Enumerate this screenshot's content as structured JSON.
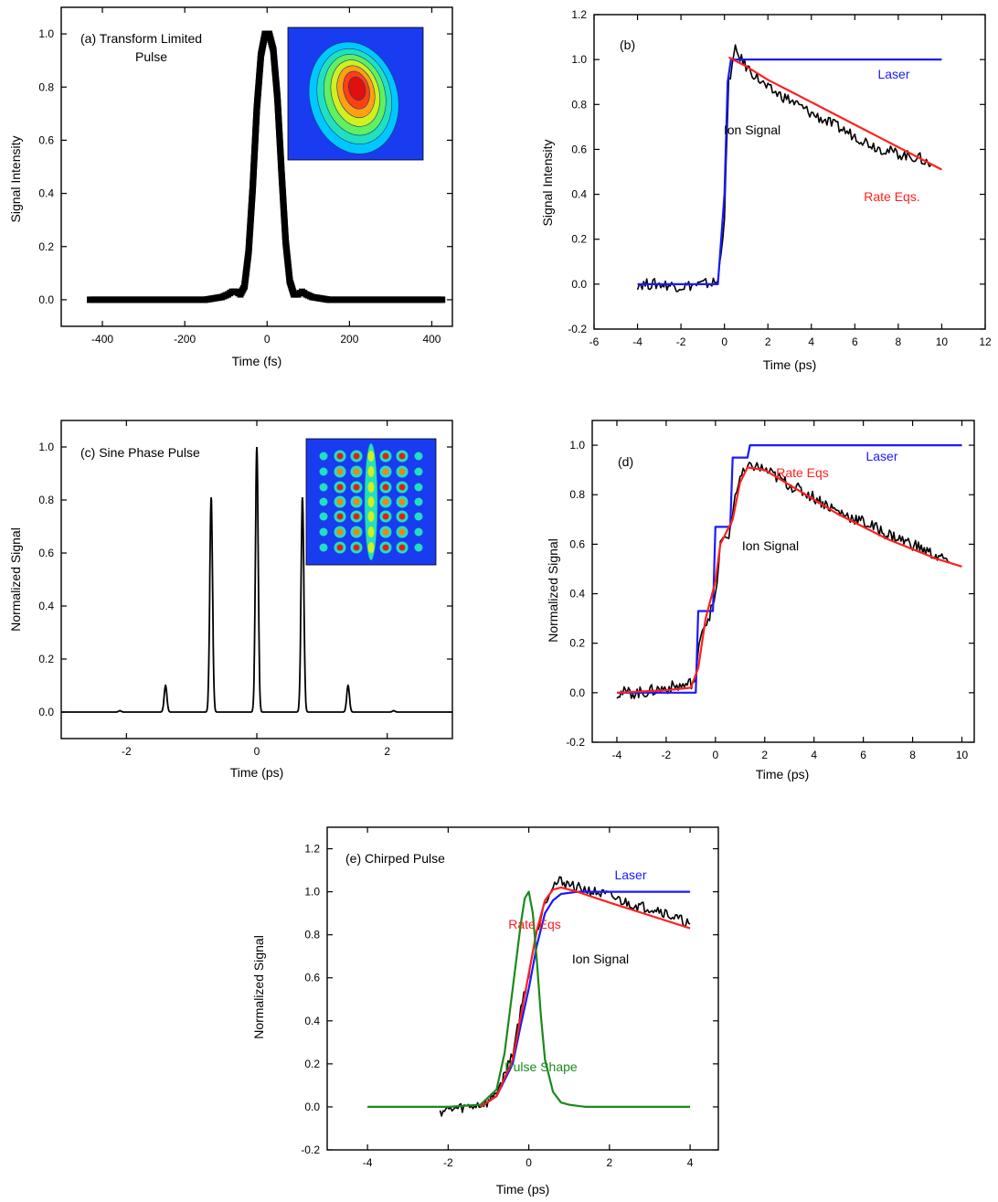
{
  "chart_data": [
    {
      "panel": "a",
      "type": "scatter",
      "title": "(a) Transform Limited Pulse",
      "title_lines": [
        "(a) Transform Limited",
        "Pulse"
      ],
      "xlabel": "Time (fs)",
      "ylabel": "Signal Intensity",
      "xlim": [
        -500,
        450
      ],
      "ylim": [
        -0.1,
        1.1
      ],
      "xticks": [
        -400,
        -200,
        0,
        200,
        400
      ],
      "xtick_labels": [
        "-400",
        "-200",
        "0",
        "200",
        "400"
      ],
      "yticks": [
        0.0,
        0.2,
        0.4,
        0.6,
        0.8,
        1.0
      ],
      "ytick_labels": [
        "0.0",
        "0.2",
        "0.4",
        "0.6",
        "0.8",
        "1.0"
      ],
      "grid": false,
      "series": [
        {
          "color": "#000000",
          "marker": "square",
          "x": [
            -430,
            -400,
            -350,
            -300,
            -250,
            -200,
            -150,
            -110,
            -95,
            -85,
            -75,
            -65,
            -55,
            -45,
            -35,
            -25,
            -15,
            -5,
            5,
            15,
            25,
            35,
            45,
            55,
            65,
            75,
            85,
            95,
            110,
            150,
            200,
            250,
            300,
            350,
            400,
            430
          ],
          "y": [
            0.0,
            0.0,
            0.0,
            0.0,
            0.0,
            0.0,
            0.0,
            0.01,
            0.02,
            0.03,
            0.03,
            0.02,
            0.05,
            0.18,
            0.42,
            0.72,
            0.92,
            1.0,
            1.0,
            0.94,
            0.76,
            0.48,
            0.22,
            0.07,
            0.02,
            0.02,
            0.03,
            0.02,
            0.01,
            0.0,
            0.0,
            0.0,
            0.0,
            0.0,
            0.0,
            0.0
          ]
        }
      ],
      "inset": {
        "type": "heatmap",
        "description_color": "contour",
        "background": "#1a3cf0"
      }
    },
    {
      "panel": "b",
      "type": "line",
      "title": "(b)",
      "xlabel": "Time (ps)",
      "ylabel": "Signal Intensity",
      "xlim": [
        -6,
        12
      ],
      "ylim": [
        -0.2,
        1.2
      ],
      "xticks": [
        -6,
        -4,
        -2,
        0,
        2,
        4,
        6,
        8,
        10,
        12
      ],
      "xtick_labels": [
        "-6",
        "-4",
        "-2",
        "0",
        "2",
        "4",
        "6",
        "8",
        "10",
        "12"
      ],
      "yticks": [
        -0.2,
        0.0,
        0.2,
        0.4,
        0.6,
        0.8,
        1.0,
        1.2
      ],
      "ytick_labels": [
        "-0.2",
        "0.0",
        "0.2",
        "0.4",
        "0.6",
        "0.8",
        "1.0",
        "1.2"
      ],
      "grid": false,
      "series": [
        {
          "name": "Ion Signal",
          "color": "#000000",
          "x": [
            -4,
            -3,
            -2,
            -1,
            -0.3,
            0,
            0.2,
            0.5,
            1,
            2,
            3,
            4,
            5,
            6,
            7,
            8,
            9,
            9.5
          ],
          "y": [
            0.0,
            0.0,
            -0.01,
            0.0,
            0.01,
            0.3,
            0.9,
            1.04,
            0.97,
            0.87,
            0.82,
            0.76,
            0.71,
            0.66,
            0.61,
            0.58,
            0.56,
            0.53
          ]
        },
        {
          "name": "Laser",
          "color": "#1a1aff",
          "x": [
            -4,
            -0.3,
            0,
            0.15,
            0.3,
            10
          ],
          "y": [
            0.0,
            0.0,
            0.4,
            0.9,
            1.0,
            1.0
          ]
        },
        {
          "name": "Rate Eqs.",
          "color": "#ff2020",
          "x": [
            0.2,
            1,
            2,
            3,
            4,
            5,
            6,
            7,
            8,
            9,
            10
          ],
          "y": [
            1.01,
            0.97,
            0.91,
            0.86,
            0.81,
            0.76,
            0.71,
            0.66,
            0.61,
            0.56,
            0.51
          ]
        }
      ],
      "annotations": [
        {
          "text": "Laser",
          "color": "#1a1aff",
          "x": 9.0,
          "y": 0.96
        },
        {
          "text": "Ion Signal",
          "color": "#000000",
          "x": 3.2,
          "y": 0.68
        },
        {
          "text": "Rate Eqs.",
          "color": "#ff2020",
          "x": 9.5,
          "y": 0.35
        }
      ]
    },
    {
      "panel": "c",
      "type": "line",
      "title": "(c) Sine Phase Pulse",
      "xlabel": "Time (ps)",
      "ylabel": "Normalized Signal",
      "xlim": [
        -3,
        3
      ],
      "ylim": [
        -0.1,
        1.1
      ],
      "xticks": [
        -2,
        0,
        2
      ],
      "xtick_labels": [
        "-2",
        "0",
        "2"
      ],
      "yticks": [
        0.0,
        0.2,
        0.4,
        0.6,
        0.8,
        1.0
      ],
      "ytick_labels": [
        "0.0",
        "0.2",
        "0.4",
        "0.6",
        "0.8",
        "1.0"
      ],
      "grid": false,
      "series": [
        {
          "color": "#000000",
          "peaks": [
            {
              "x": -2.1,
              "height": 0.005
            },
            {
              "x": -1.4,
              "height": 0.1
            },
            {
              "x": -0.7,
              "height": 0.81
            },
            {
              "x": 0.0,
              "height": 1.0
            },
            {
              "x": 0.7,
              "height": 0.81
            },
            {
              "x": 1.4,
              "height": 0.1
            },
            {
              "x": 2.1,
              "height": 0.005
            }
          ]
        }
      ],
      "inset": {
        "type": "heatmap",
        "description_color": "spot-array",
        "background": "#1a3cf0"
      }
    },
    {
      "panel": "d",
      "type": "line",
      "title": "(d)",
      "xlabel": "Time (ps)",
      "ylabel": "Normalized Signal",
      "xlim": [
        -5,
        10.5
      ],
      "ylim": [
        -0.2,
        1.1
      ],
      "xticks": [
        -4,
        -2,
        0,
        2,
        4,
        6,
        8,
        10
      ],
      "xtick_labels": [
        "-4",
        "-2",
        "0",
        "2",
        "4",
        "6",
        "8",
        "10"
      ],
      "yticks": [
        -0.2,
        0.0,
        0.2,
        0.4,
        0.6,
        0.8,
        1.0
      ],
      "ytick_labels": [
        "-0.2",
        "0.0",
        "0.2",
        "0.4",
        "0.6",
        "0.8",
        "1.0"
      ],
      "grid": false,
      "series": [
        {
          "name": "Ion Signal",
          "color": "#000000",
          "x": [
            -4,
            -3,
            -2,
            -1.2,
            -0.8,
            -0.6,
            -0.3,
            0,
            0.2,
            0.6,
            0.8,
            1.0,
            1.5,
            2,
            3,
            4,
            5,
            6,
            7,
            8,
            9,
            9.5
          ],
          "y": [
            0.0,
            0.0,
            0.02,
            0.03,
            0.05,
            0.25,
            0.3,
            0.38,
            0.6,
            0.65,
            0.8,
            0.87,
            0.92,
            0.9,
            0.84,
            0.79,
            0.73,
            0.69,
            0.64,
            0.6,
            0.55,
            0.53
          ]
        },
        {
          "name": "Laser",
          "color": "#1a1aff",
          "x": [
            -4,
            -0.8,
            -0.7,
            -0.1,
            0.0,
            0.6,
            0.7,
            1.3,
            1.4,
            10
          ],
          "y": [
            0.0,
            0.0,
            0.33,
            0.33,
            0.67,
            0.67,
            0.95,
            0.95,
            1.0,
            1.0
          ]
        },
        {
          "name": "Rate Eqs",
          "color": "#ff2020",
          "x": [
            -4,
            -2,
            -1,
            -0.7,
            -0.4,
            0,
            0.2,
            0.7,
            1.0,
            1.3,
            2,
            3,
            4,
            5,
            6,
            7,
            8,
            9,
            10
          ],
          "y": [
            0.0,
            0.01,
            0.02,
            0.1,
            0.3,
            0.45,
            0.6,
            0.7,
            0.85,
            0.91,
            0.9,
            0.84,
            0.78,
            0.72,
            0.67,
            0.62,
            0.58,
            0.54,
            0.51
          ]
        }
      ],
      "annotations": [
        {
          "text": "Laser",
          "color": "#1a1aff",
          "x": 7.6,
          "y": 0.96
        },
        {
          "text": "Rate Eqs",
          "color": "#ff2020",
          "x": 3.4,
          "y": 0.88
        },
        {
          "text": "Ion Signal",
          "color": "#000000",
          "x": 2.2,
          "y": 0.54
        }
      ]
    },
    {
      "panel": "e",
      "type": "line",
      "title": "(e) Chirped Pulse",
      "xlabel": "Time (ps)",
      "ylabel": "Normalized Signal",
      "xlim": [
        -5,
        4.7
      ],
      "ylim": [
        -0.2,
        1.3
      ],
      "xticks": [
        -4,
        -2,
        0,
        2,
        4
      ],
      "xtick_labels": [
        "-4",
        "-2",
        "0",
        "2",
        "4"
      ],
      "yticks": [
        -0.2,
        0.0,
        0.2,
        0.4,
        0.6,
        0.8,
        1.0,
        1.2
      ],
      "ytick_labels": [
        "-0.2",
        "0.0",
        "0.2",
        "0.4",
        "0.6",
        "0.8",
        "1.0",
        "1.2"
      ],
      "grid": false,
      "series": [
        {
          "name": "Ion Signal",
          "color": "#000000",
          "x": [
            -2.2,
            -1.5,
            -1.0,
            -0.7,
            -0.4,
            -0.2,
            0.0,
            0.2,
            0.4,
            0.6,
            0.8,
            1.2,
            1.6,
            2.0,
            2.4,
            2.8,
            3.2,
            3.6,
            4.0
          ],
          "y": [
            -0.02,
            0.0,
            0.02,
            0.1,
            0.25,
            0.45,
            0.62,
            0.82,
            0.96,
            1.03,
            1.05,
            1.02,
            1.0,
            0.98,
            0.95,
            0.93,
            0.92,
            0.88,
            0.85
          ]
        },
        {
          "name": "Laser",
          "color": "#1a1aff",
          "x": [
            -1.2,
            -0.8,
            -0.4,
            -0.2,
            0.0,
            0.2,
            0.4,
            0.6,
            0.8,
            1.2,
            4.0
          ],
          "y": [
            0.0,
            0.05,
            0.2,
            0.38,
            0.55,
            0.75,
            0.9,
            0.96,
            0.99,
            1.0,
            1.0
          ]
        },
        {
          "name": "Rate Eqs",
          "color": "#ff2020",
          "x": [
            -1.2,
            -0.8,
            -0.4,
            -0.2,
            0.0,
            0.2,
            0.4,
            0.6,
            0.8,
            1.2,
            2.0,
            3.0,
            4.0
          ],
          "y": [
            0.0,
            0.05,
            0.22,
            0.42,
            0.62,
            0.82,
            0.96,
            1.01,
            1.02,
            1.0,
            0.95,
            0.89,
            0.83
          ]
        },
        {
          "name": "Pulse Shape",
          "color": "#1a8a1a",
          "x": [
            -4,
            -2,
            -1.2,
            -0.8,
            -0.6,
            -0.4,
            -0.2,
            -0.1,
            0.0,
            0.1,
            0.2,
            0.3,
            0.4,
            0.6,
            0.8,
            1.0,
            1.4,
            2.0,
            4.0
          ],
          "y": [
            0.0,
            0.0,
            0.01,
            0.08,
            0.25,
            0.55,
            0.85,
            0.97,
            1.0,
            0.9,
            0.68,
            0.42,
            0.22,
            0.07,
            0.02,
            0.01,
            0.0,
            0.0,
            0.0
          ]
        }
      ],
      "annotations": [
        {
          "text": "Laser",
          "color": "#1a1aff",
          "x": 2.9,
          "y": 1.08
        },
        {
          "text": "Rate Eqs",
          "color": "#ff2020",
          "x": 0.4,
          "y": 0.84
        },
        {
          "text": "Ion Signal",
          "color": "#000000",
          "x": 2.2,
          "y": 0.74
        },
        {
          "text": "Pulse Shape",
          "color": "#1a8a1a",
          "x": 0.6,
          "y": 0.22
        }
      ]
    }
  ]
}
